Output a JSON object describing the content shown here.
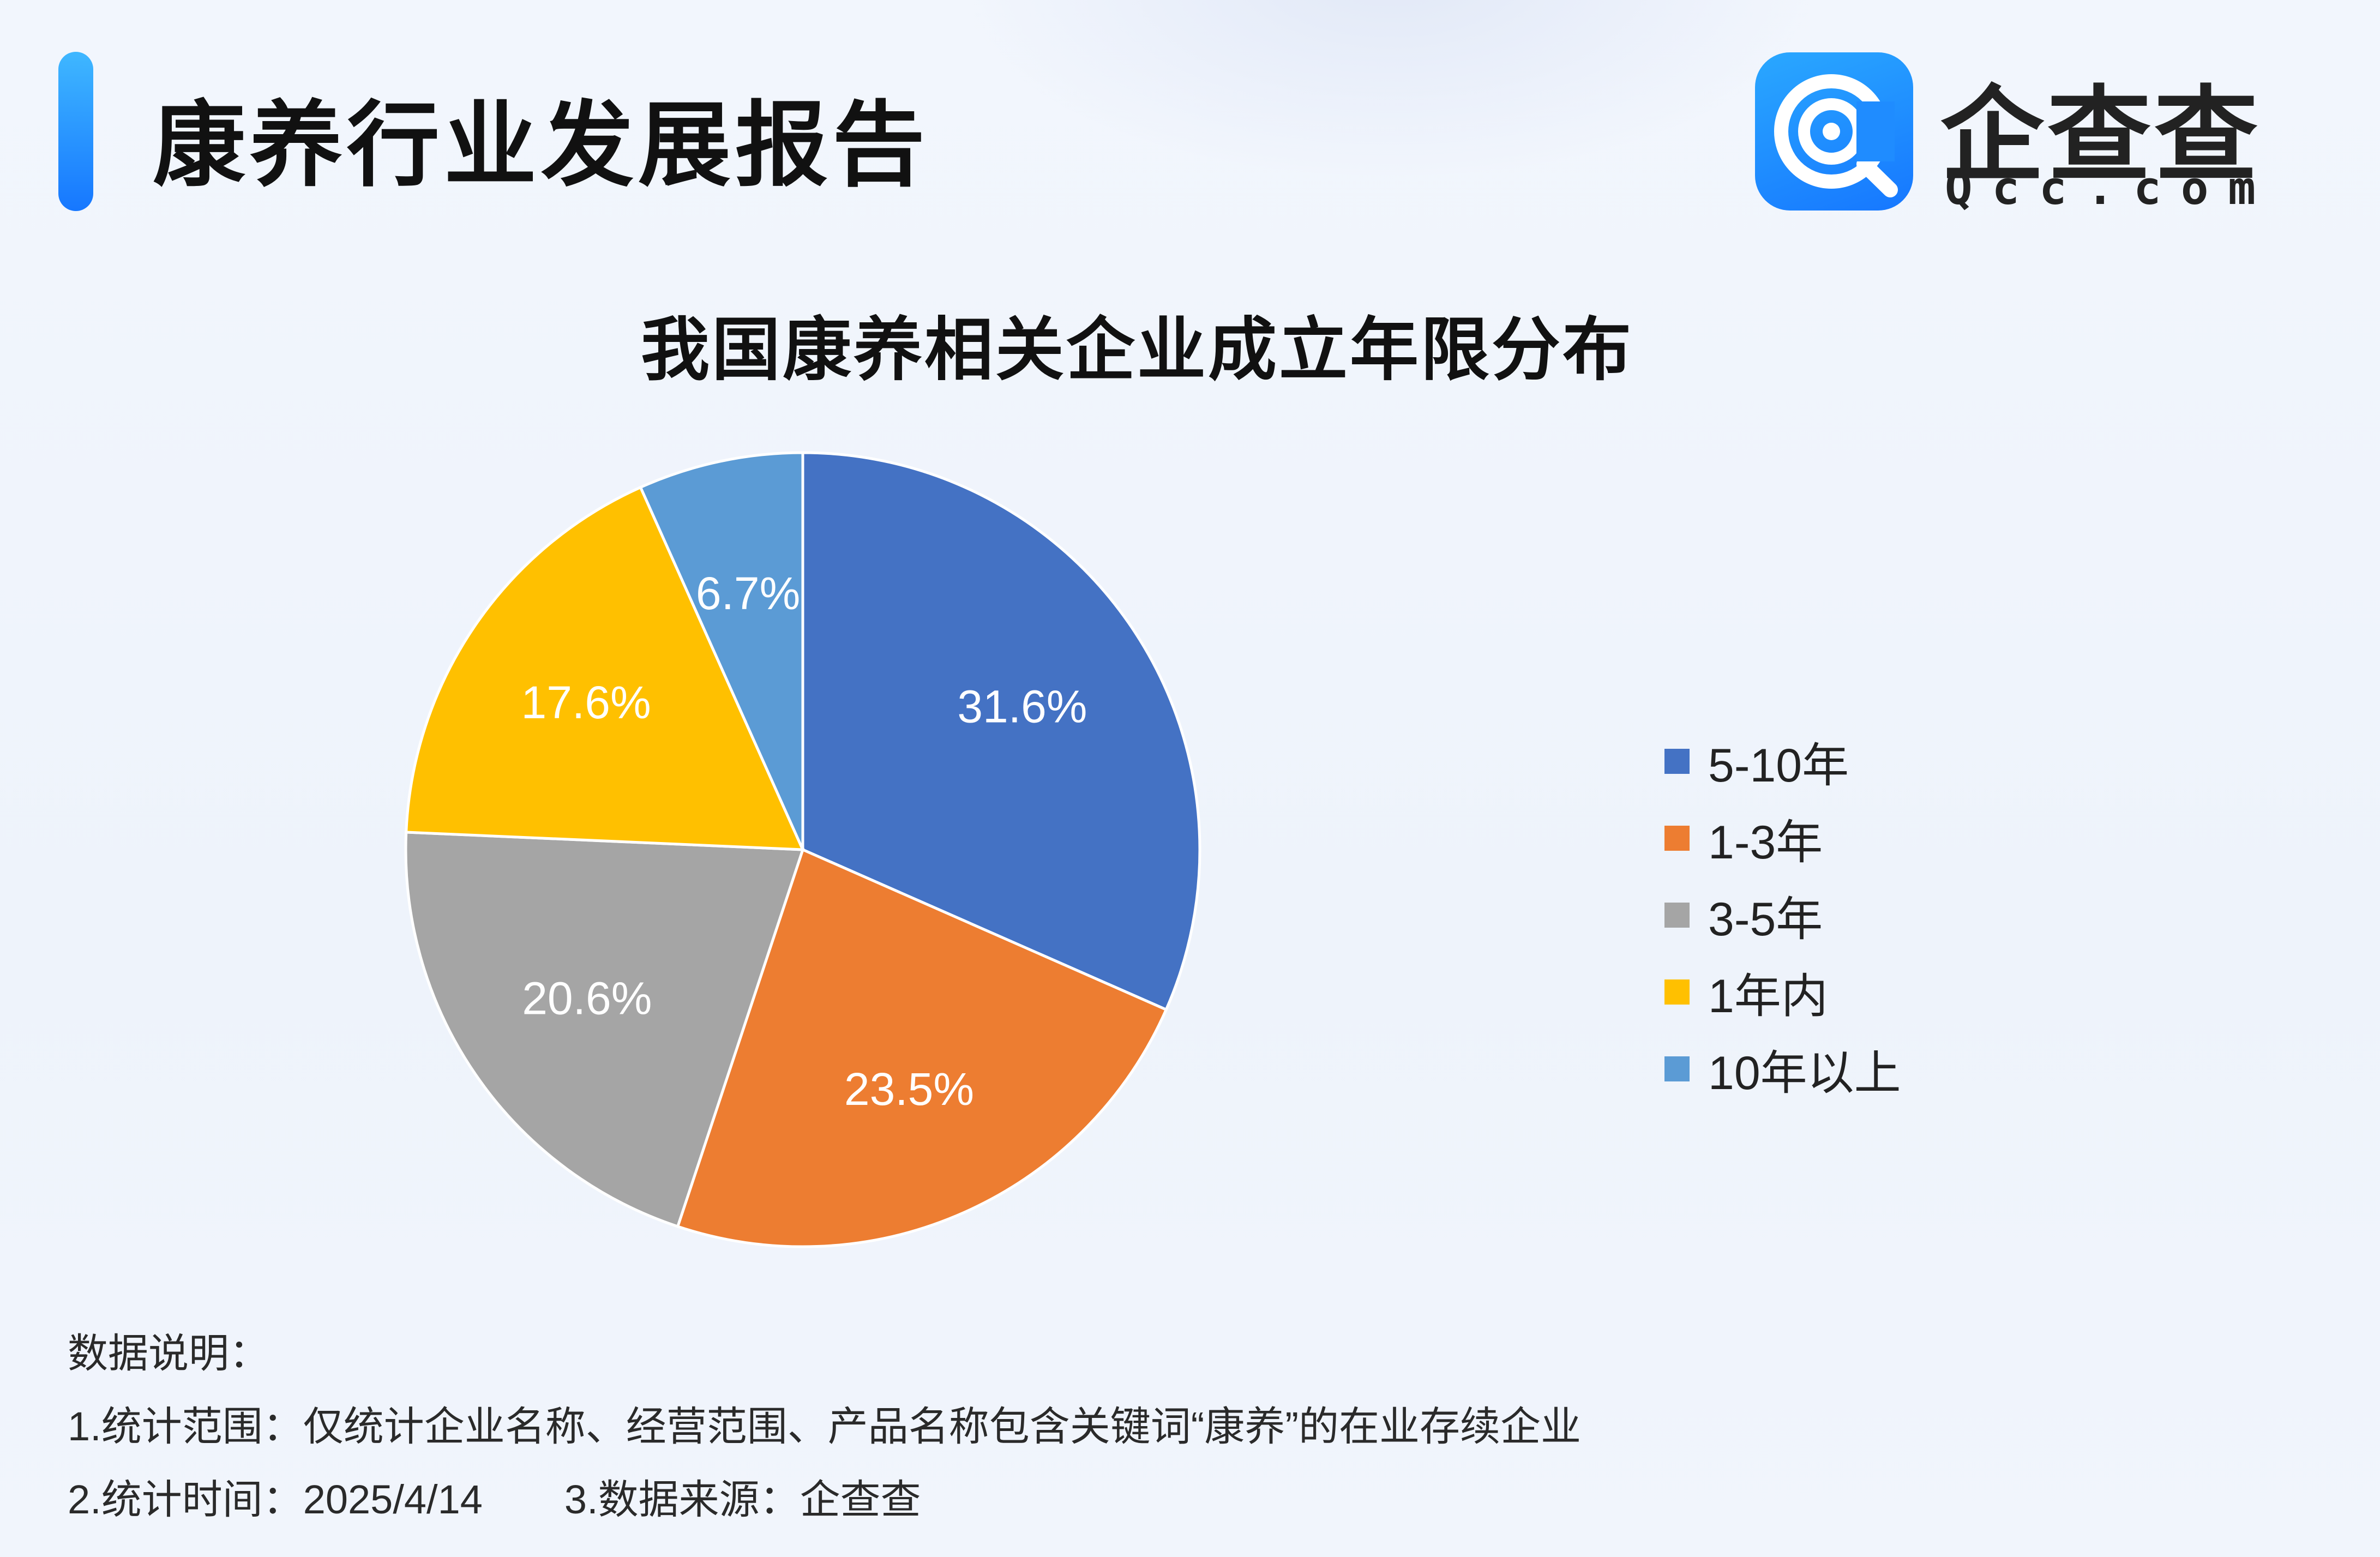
{
  "header": {
    "title": "康养行业发展报告",
    "accent_color": "#1677ff"
  },
  "logo": {
    "name": "企查查",
    "domain": "Qcc.com",
    "icon": "qcc-logo-icon"
  },
  "chart_data": {
    "type": "pie",
    "title": "我国康养相关企业成立年限分布",
    "legend_position": "right",
    "slices": [
      {
        "label": "5-10年",
        "value": 31.6,
        "display": "31.6%",
        "color": "#4472c4"
      },
      {
        "label": "1-3年",
        "value": 23.5,
        "display": "23.5%",
        "color": "#ed7d31"
      },
      {
        "label": "3-5年",
        "value": 20.6,
        "display": "20.6%",
        "color": "#a5a5a5"
      },
      {
        "label": "1年内",
        "value": 17.6,
        "display": "17.6%",
        "color": "#ffc000"
      },
      {
        "label": "10年以上",
        "value": 6.7,
        "display": "6.7%",
        "color": "#5b9bd5"
      }
    ]
  },
  "notes": {
    "heading": "数据说明：",
    "scope": "1.统计范围：仅统计企业名称、经营范围、产品名称包含关键词“康养”的在业存续企业",
    "time": "2.统计时间：2025/4/14",
    "source": "3.数据来源：企查查"
  }
}
